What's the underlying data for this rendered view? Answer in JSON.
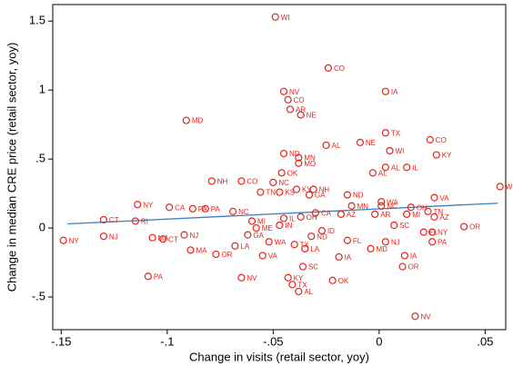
{
  "chart_data": {
    "type": "scatter",
    "xlabel": "Change in visits (retail sector, yoy)",
    "ylabel": "Change in median CRE price (retail sector, yoy)",
    "xlim": [
      -0.154,
      0.0597
    ],
    "ylim": [
      -0.737,
      1.62
    ],
    "xticks": [
      {
        "value": -0.15,
        "label": "-.15"
      },
      {
        "value": -0.1,
        "label": "-.1"
      },
      {
        "value": -0.05,
        "label": "-.05"
      },
      0,
      {
        "value": 0.05,
        "label": ".05"
      }
    ],
    "yticks": [
      {
        "value": -0.5,
        "label": "-.5"
      },
      0,
      {
        "value": 0.5,
        "label": ".5"
      },
      1,
      1.5
    ],
    "color": "#e3241b",
    "fit_color": "#3a7ebf",
    "fit": {
      "x": [
        -0.147,
        0.056
      ],
      "y": [
        0.03,
        0.18
      ]
    },
    "points": {
      "x": [
        -0.049,
        -0.024,
        -0.045,
        0.003,
        -0.043,
        -0.042,
        -0.037,
        -0.091,
        0.003,
        0.024,
        -0.009,
        -0.025,
        0.005,
        -0.045,
        -0.038,
        0.027,
        -0.038,
        0.003,
        0.013,
        -0.003,
        -0.046,
        -0.079,
        -0.065,
        -0.05,
        0.057,
        -0.039,
        -0.031,
        -0.056,
        -0.047,
        -0.033,
        -0.015,
        0.026,
        0.001,
        -0.114,
        -0.099,
        -0.082,
        0.001,
        -0.013,
        -0.088,
        0.015,
        0.023,
        0.026,
        -0.002,
        0.013,
        -0.069,
        -0.03,
        -0.018,
        -0.037,
        -0.13,
        -0.115,
        0.04,
        0.025,
        0.021,
        0.025,
        0.007,
        -0.149,
        -0.13,
        -0.107,
        -0.102,
        -0.092,
        -0.089,
        -0.077,
        -0.068,
        -0.055,
        -0.019,
        0.003,
        -0.004,
        -0.015,
        0.011,
        0.012,
        -0.036,
        -0.109,
        -0.065,
        -0.043,
        -0.022,
        -0.041,
        -0.038,
        0.017,
        -0.032,
        -0.047,
        -0.06,
        -0.052,
        -0.04,
        -0.027,
        -0.045,
        -0.058,
        -0.035,
        -0.062
      ],
      "y": [
        1.53,
        1.16,
        0.99,
        0.99,
        0.93,
        0.86,
        0.82,
        0.78,
        0.69,
        0.64,
        0.62,
        0.6,
        0.56,
        0.54,
        0.51,
        0.53,
        0.47,
        0.44,
        0.44,
        0.4,
        0.4,
        0.34,
        0.34,
        0.33,
        0.3,
        0.28,
        0.28,
        0.26,
        0.26,
        0.24,
        0.24,
        0.22,
        0.19,
        0.17,
        0.15,
        0.14,
        0.16,
        0.16,
        0.14,
        0.15,
        0.12,
        0.08,
        0.1,
        0.1,
        0.12,
        0.11,
        0.1,
        0.08,
        0.06,
        0.05,
        0.01,
        -0.03,
        -0.03,
        -0.1,
        0.02,
        -0.09,
        -0.06,
        -0.07,
        -0.08,
        -0.05,
        -0.16,
        -0.19,
        -0.13,
        -0.2,
        -0.21,
        -0.1,
        -0.15,
        -0.09,
        -0.28,
        -0.2,
        -0.28,
        -0.35,
        -0.36,
        -0.36,
        -0.38,
        -0.41,
        -0.46,
        -0.64,
        -0.06,
        0.02,
        0.05,
        -0.1,
        -0.12,
        -0.02,
        0.07,
        0.0,
        -0.15,
        -0.05
      ],
      "labels": [
        "WI",
        "CO",
        "NV",
        "IA",
        "CO",
        "AR",
        "NE",
        "MD",
        "TX",
        "CO",
        "NE",
        "AL",
        "WI",
        "ND",
        "MN",
        "KY",
        "MO",
        "AL",
        "IL",
        "AL",
        "OK",
        "NH",
        "CO",
        "NC",
        "W",
        "KY",
        "NH",
        "TN",
        "KS",
        "GA",
        "ND",
        "VA",
        "WA",
        "NY",
        "CA",
        "PA",
        "NC",
        "MN",
        "PA",
        "OH",
        "TN",
        "AZ",
        "AR",
        "MI",
        "NC",
        "CA",
        "AZ",
        "OH",
        "CT",
        "RI",
        "OR",
        "NY",
        "FL",
        "PA",
        "SC",
        "NY",
        "NJ",
        "MA",
        "CT",
        "NJ",
        "MA",
        "OR",
        "LA",
        "VA",
        "IA",
        "NJ",
        "MD",
        "FL",
        "OR",
        "IA",
        "SC",
        "PA",
        "NV",
        "KY",
        "OK",
        "TX",
        "AL",
        "NV",
        "ND",
        "IN",
        "MI",
        "WA",
        "TX",
        "ID",
        "IL",
        "ME",
        "LA",
        "GA"
      ]
    }
  }
}
